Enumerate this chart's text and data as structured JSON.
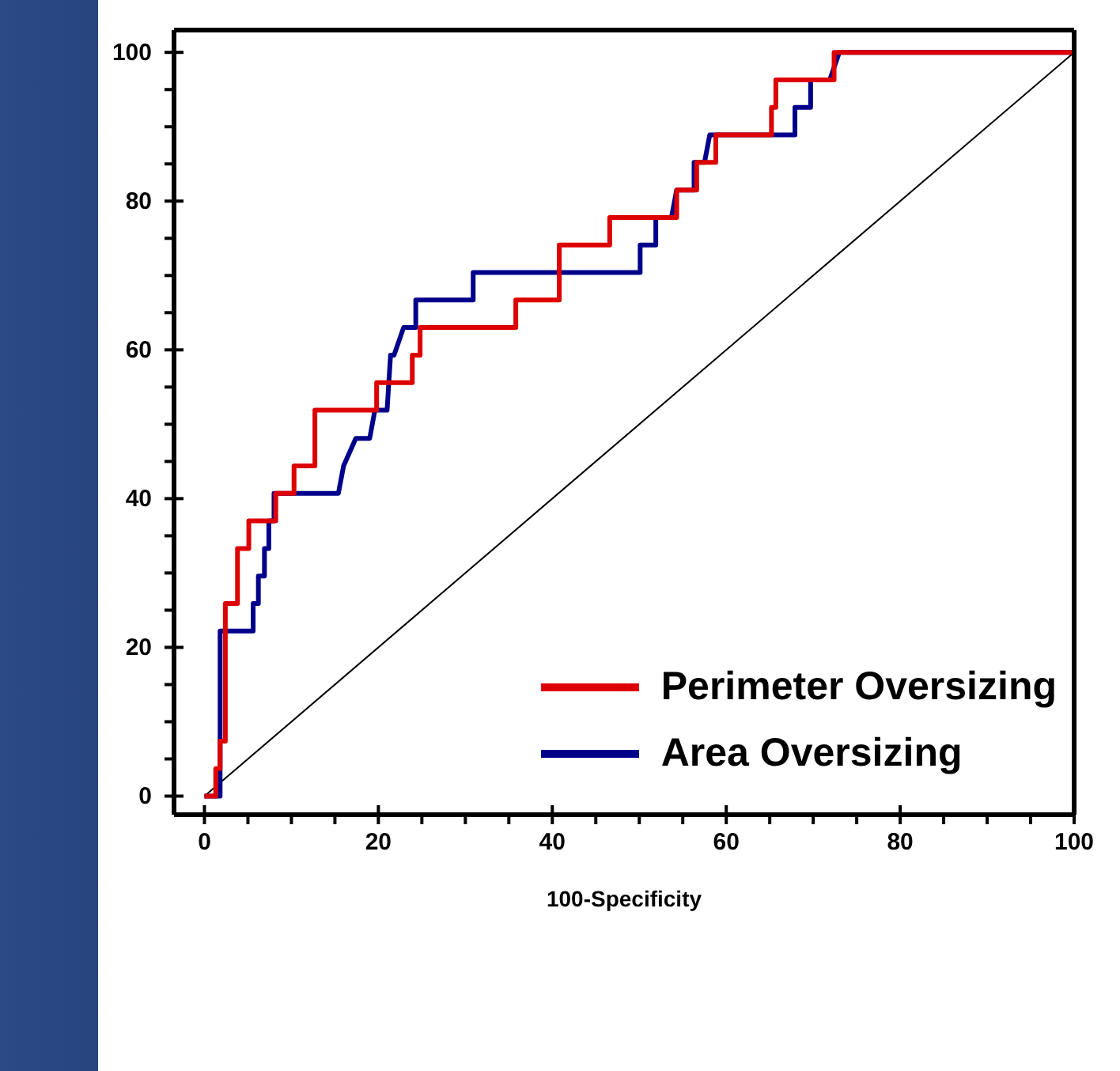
{
  "chart_data": {
    "type": "line",
    "xlabel": "100-Specificity",
    "xlim": [
      -3.5,
      100
    ],
    "ylim": [
      -2.5,
      103
    ],
    "xticks": [
      0,
      {
        "value": 5,
        "label": null
      },
      {
        "value": 10,
        "label": null
      },
      {
        "value": 15,
        "label": null
      },
      20,
      {
        "value": 25,
        "label": null
      },
      {
        "value": 30,
        "label": null
      },
      {
        "value": 35,
        "label": null
      },
      40,
      {
        "value": 45,
        "label": null
      },
      {
        "value": 50,
        "label": null
      },
      {
        "value": 55,
        "label": null
      },
      60,
      {
        "value": 65,
        "label": null
      },
      {
        "value": 70,
        "label": null
      },
      {
        "value": 75,
        "label": null
      },
      80,
      {
        "value": 85,
        "label": null
      },
      {
        "value": 90,
        "label": null
      },
      {
        "value": 95,
        "label": null
      },
      100
    ],
    "yticks": [
      0,
      {
        "value": 5,
        "label": null
      },
      {
        "value": 10,
        "label": null
      },
      {
        "value": 15,
        "label": null
      },
      20,
      {
        "value": 25,
        "label": null
      },
      {
        "value": 30,
        "label": null
      },
      {
        "value": 35,
        "label": null
      },
      40,
      {
        "value": 45,
        "label": null
      },
      {
        "value": 50,
        "label": null
      },
      {
        "value": 55,
        "label": null
      },
      60,
      {
        "value": 65,
        "label": null
      },
      {
        "value": 70,
        "label": null
      },
      {
        "value": 75,
        "label": null
      },
      80,
      {
        "value": 85,
        "label": null
      },
      {
        "value": 90,
        "label": null
      },
      {
        "value": 95,
        "label": null
      },
      100
    ],
    "legend": "bottom right",
    "marker": "none",
    "line_style": "solid",
    "series": [
      {
        "color": "#000000",
        "x": [
          0,
          100
        ],
        "values": [
          0,
          100
        ]
      },
      {
        "name": "Area Oversizing",
        "color": "#00008b",
        "x": [
          0,
          1.8,
          1.8,
          5.6,
          5.6,
          6.2,
          6.2,
          6.9,
          6.9,
          7.4,
          7.4,
          8,
          8,
          15.4,
          16,
          17.4,
          19,
          19.6,
          21,
          21.4,
          21.8,
          22.9,
          24.3,
          24.3,
          30.9,
          30.9,
          50.1,
          50.1,
          51.9,
          51.9,
          53.7,
          54.3,
          56.3,
          56.3,
          57.5,
          58.1,
          67.9,
          67.9,
          69.7,
          69.7,
          71.9,
          73,
          100
        ],
        "values": [
          0,
          0,
          22.2,
          22.2,
          25.9,
          25.9,
          29.6,
          29.6,
          33.3,
          33.3,
          37,
          37,
          40.7,
          40.7,
          44.4,
          48.1,
          48.1,
          51.9,
          51.9,
          59.3,
          59.3,
          63,
          63,
          66.7,
          66.7,
          70.4,
          70.4,
          74.1,
          74.1,
          77.8,
          77.8,
          81.5,
          81.5,
          85.2,
          85.2,
          88.9,
          88.9,
          92.6,
          92.6,
          96.3,
          96.3,
          100,
          100
        ]
      },
      {
        "name": "Perimeter Oversizing",
        "color": "#dd0000",
        "x": [
          0,
          1.3,
          1.3,
          1.8,
          1.8,
          2.4,
          2.4,
          3.8,
          3.8,
          5.1,
          5.1,
          8.2,
          8.2,
          10.3,
          10.3,
          12.7,
          12.7,
          19.8,
          19.8,
          23.9,
          23.9,
          24.8,
          24.8,
          35.8,
          35.8,
          40.8,
          40.8,
          46.6,
          46.6,
          54.3,
          54.3,
          56.6,
          56.6,
          58.8,
          58.8,
          65.2,
          65.2,
          65.7,
          65.7,
          72.4,
          72.4,
          100
        ],
        "values": [
          0,
          0,
          3.7,
          3.7,
          7.4,
          7.4,
          25.9,
          25.9,
          33.3,
          33.3,
          37,
          37,
          40.7,
          40.7,
          44.4,
          44.4,
          51.9,
          51.9,
          55.6,
          55.6,
          59.3,
          59.3,
          63,
          63,
          66.7,
          66.7,
          74.1,
          74.1,
          77.8,
          77.8,
          81.5,
          81.5,
          85.2,
          85.2,
          88.9,
          88.9,
          92.6,
          92.6,
          96.3,
          96.3,
          100,
          100
        ]
      }
    ]
  }
}
